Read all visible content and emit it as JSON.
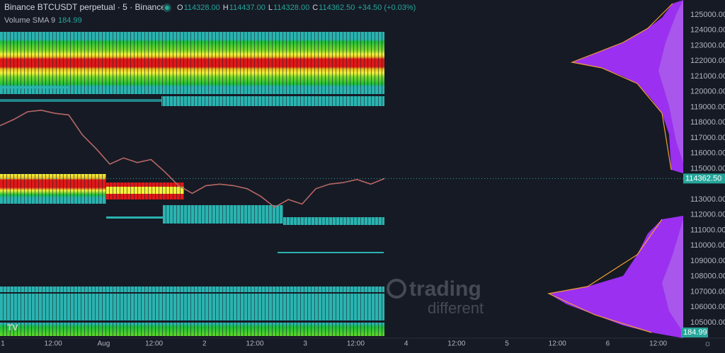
{
  "header": {
    "symbol": "Binance BTCUSDT perpetual · 5 · Binance",
    "ohlc": [
      {
        "key": "O",
        "value": "114328.00"
      },
      {
        "key": "H",
        "value": "114437.00"
      },
      {
        "key": "L",
        "value": "114328.00"
      },
      {
        "key": "C",
        "value": "114362.50"
      }
    ],
    "change": "+34.50 (+0.03%)",
    "indicator": "Volume SMA 9",
    "indicator_value": "184.99"
  },
  "price_axis": {
    "ticks": [
      {
        "value": 125000,
        "label": "125000.00"
      },
      {
        "value": 124000,
        "label": "124000.00"
      },
      {
        "value": 123000,
        "label": "123000.00"
      },
      {
        "value": 122000,
        "label": "122000.00"
      },
      {
        "value": 121000,
        "label": "121000.00"
      },
      {
        "value": 120000,
        "label": "120000.00"
      },
      {
        "value": 119000,
        "label": "119000.00"
      },
      {
        "value": 118000,
        "label": "118000.00"
      },
      {
        "value": 117000,
        "label": "117000.00"
      },
      {
        "value": 116000,
        "label": "116000.00"
      },
      {
        "value": 115000,
        "label": "115000.00"
      },
      {
        "value": 113000,
        "label": "113000.00"
      },
      {
        "value": 112000,
        "label": "112000.00"
      },
      {
        "value": 111000,
        "label": "111000.00"
      },
      {
        "value": 110000,
        "label": "110000.00"
      },
      {
        "value": 109000,
        "label": "109000.00"
      },
      {
        "value": 108000,
        "label": "108000.00"
      },
      {
        "value": 107000,
        "label": "107000.00"
      },
      {
        "value": 106000,
        "label": "106000.00"
      },
      {
        "value": 105000,
        "label": "105000.00"
      }
    ],
    "current": {
      "value": 114362.5,
      "label": "114362.50"
    },
    "volume_tag": "184.99"
  },
  "time_axis": {
    "labels": [
      "1",
      "12:00",
      "Aug",
      "12:00",
      "2",
      "12:00",
      "3",
      "12:00",
      "4",
      "12:00",
      "5",
      "12:00",
      "6",
      "12:00"
    ]
  },
  "price_trace": [
    117800,
    118200,
    118700,
    118800,
    118600,
    118500,
    117200,
    116300,
    115300,
    115700,
    115400,
    115600,
    114800,
    113900,
    113400,
    113900,
    114000,
    113900,
    113700,
    113200,
    112500,
    113000,
    112700,
    113700,
    114000,
    114100,
    114300,
    114000,
    114362.5
  ],
  "watermark": {
    "line1": "trading",
    "line2": "different"
  }
}
